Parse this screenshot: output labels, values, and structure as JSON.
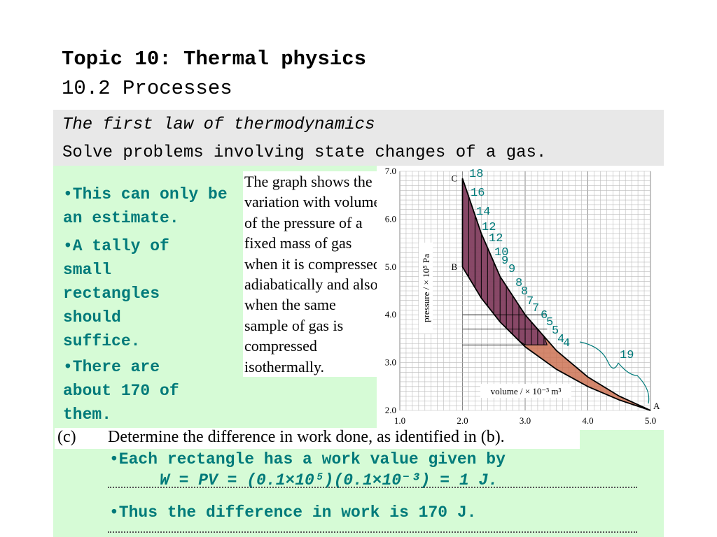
{
  "header": {
    "title": "Topic 10: Thermal physics",
    "subtitle": "10.2 Processes"
  },
  "objective": {
    "line1": "The first law of thermodynamics",
    "line2": "Solve problems involving state changes of a gas."
  },
  "notes": {
    "estimate": "•This can only be an estimate.",
    "tally": "•A tally of small rectangles should suffice.",
    "count": "•There are about 170 of them."
  },
  "description": "The graph shows the variation with volume of the pressure of a fixed mass of gas when it is compressed adiabatically and also when the same sample of gas is compressed isothermally.",
  "question": {
    "label": "(c)",
    "text": "Determine the difference in work done, as identified in (b)."
  },
  "answers": {
    "rect_prefix": "•Each rectangle has a work value given by",
    "formula": "W = PV = (0.1×10⁵)(0.1×10⁻³) = 1 J.",
    "result": "•Thus the difference in work is 170 J."
  },
  "colors": {
    "accent_text": "#007a7a",
    "shade_fill": "#c96a4a",
    "hatch_fill": "#7a3d66",
    "band_gray": "#e8e8e8",
    "band_green": "#d6fbd6"
  },
  "chart_data": {
    "type": "line",
    "xlabel": "volume / × 10⁻³ m³",
    "ylabel": "pressure / × 10⁵ Pa",
    "xlim": [
      1.0,
      5.0
    ],
    "ylim": [
      2.0,
      7.0
    ],
    "x_ticks": [
      "1.0",
      "2.0",
      "3.0",
      "4.0",
      "5.0"
    ],
    "y_ticks": [
      "2.0",
      "3.0",
      "4.0",
      "5.0",
      "6.0",
      "7.0"
    ],
    "grid": true,
    "points": [
      {
        "label": "A",
        "x": 5.0,
        "y": 2.0
      },
      {
        "label": "B",
        "x": 2.0,
        "y": 5.0
      },
      {
        "label": "C",
        "x": 2.0,
        "y": 6.85
      }
    ],
    "series": [
      {
        "name": "adiabatic",
        "x": [
          2.0,
          2.3,
          2.6,
          3.0,
          3.5,
          4.0,
          4.5,
          5.0
        ],
        "y": [
          6.85,
          5.7,
          4.8,
          4.0,
          3.25,
          2.7,
          2.3,
          2.0
        ]
      },
      {
        "name": "isothermal",
        "x": [
          2.0,
          2.3,
          2.6,
          3.0,
          3.5,
          4.0,
          4.5,
          5.0
        ],
        "y": [
          5.0,
          4.35,
          3.85,
          3.33,
          2.86,
          2.5,
          2.22,
          2.0
        ]
      }
    ],
    "tally_labels": [
      "18",
      "16",
      "14",
      "12",
      "12",
      "10",
      "9",
      "9",
      "8",
      "8",
      "7",
      "7",
      "6",
      "5",
      "5",
      "4",
      "4",
      "19"
    ]
  }
}
